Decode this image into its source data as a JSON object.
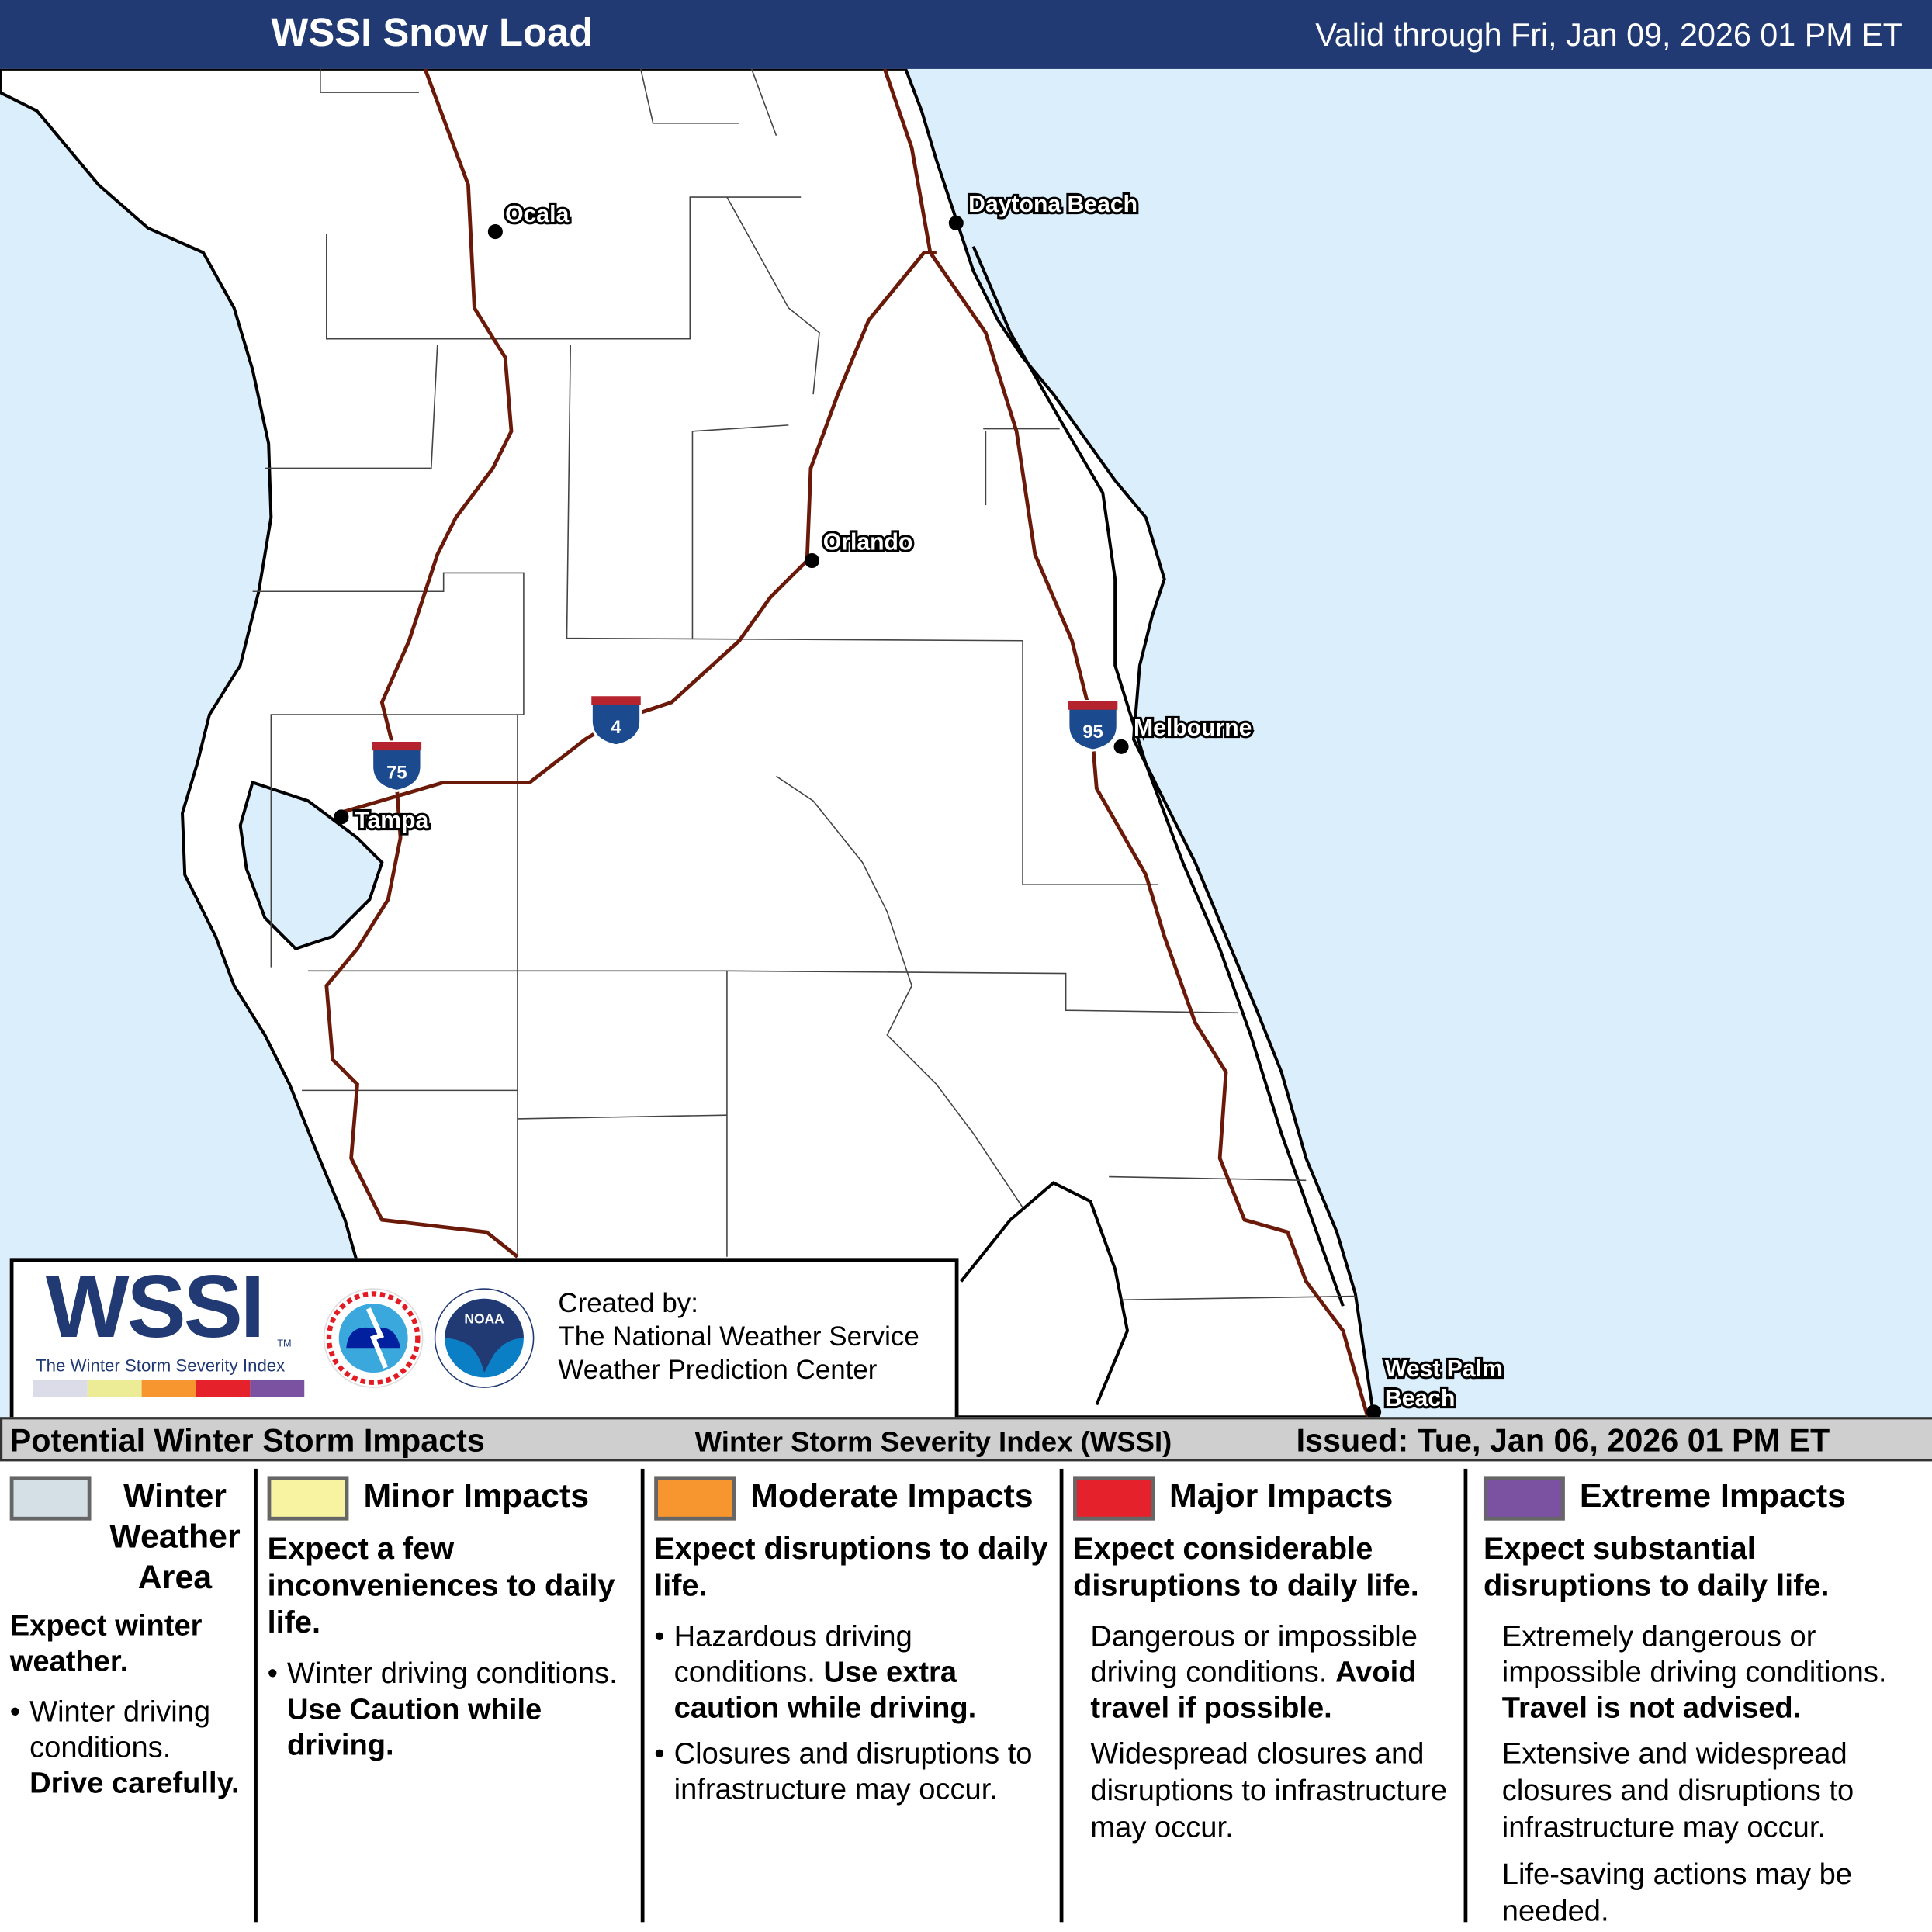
{
  "header": {
    "title": "WSSI Snow Load",
    "valid": "Valid through Fri, Jan 09, 2026 01 PM ET"
  },
  "map": {
    "colors": {
      "ocean": "#dbeefc",
      "land": "#ffffff",
      "interstate": "#6b1a0a"
    },
    "cities": [
      {
        "name": "Ocala"
      },
      {
        "name": "Daytona Beach"
      },
      {
        "name": "Orlando"
      },
      {
        "name": "Melbourne"
      },
      {
        "name": "Tampa"
      },
      {
        "name": "West Palm"
      },
      {
        "name": "Beach"
      }
    ],
    "shields": [
      {
        "number": "75"
      },
      {
        "number": "4"
      },
      {
        "number": "95"
      }
    ]
  },
  "logo": {
    "wssi": "WSSI",
    "tm": "TM",
    "subtitle": "The Winter Storm Severity Index",
    "created_by": "Created by:",
    "org1": "The National Weather Service",
    "org2": "Weather Prediction Center",
    "nws_ring": "NATIONAL WEATHER SERVICE",
    "noaa": "NOAA"
  },
  "strip": {
    "left": "Potential Winter Storm Impacts",
    "center": "Winter Storm Severity Index (WSSI)",
    "right": "Issued: Tue, Jan 06, 2026 01 PM ET"
  },
  "legend": [
    {
      "title": "Winter Weather Area",
      "color": "#d5dfe6",
      "summary": "Expect winter weather.",
      "text": "Winter driving conditions.",
      "bold": "Drive carefully."
    },
    {
      "title": "Minor Impacts",
      "color": "#f8f3a0",
      "summary": "Expect a few inconveniences to daily life.",
      "text": "Winter driving conditions.",
      "bold": "Use Caution while driving."
    },
    {
      "title": "Moderate Impacts",
      "color": "#f7962f",
      "summary": "Expect disruptions to daily life.",
      "text": "Hazardous driving conditions.",
      "bold": "Use extra caution while driving.",
      "text2": "Closures and disruptions to infrastructure may occur."
    },
    {
      "title": "Major Impacts",
      "color": "#e5212b",
      "summary": "Expect considerable disruptions to daily life.",
      "text": "Dangerous or impossible driving conditions.",
      "bold": "Avoid travel if possible.",
      "text2": "Widespread closures and disruptions to infrastructure may occur."
    },
    {
      "title": "Extreme Impacts",
      "color": "#7b52a1",
      "summary": "Expect substantial disruptions to daily life.",
      "text": "Extremely dangerous or impossible driving conditions.",
      "bold": "Travel is not advised.",
      "text2": "Extensive and widespread closures and disruptions to infrastructure may occur.",
      "text3": "Life-saving actions may be needed."
    }
  ]
}
